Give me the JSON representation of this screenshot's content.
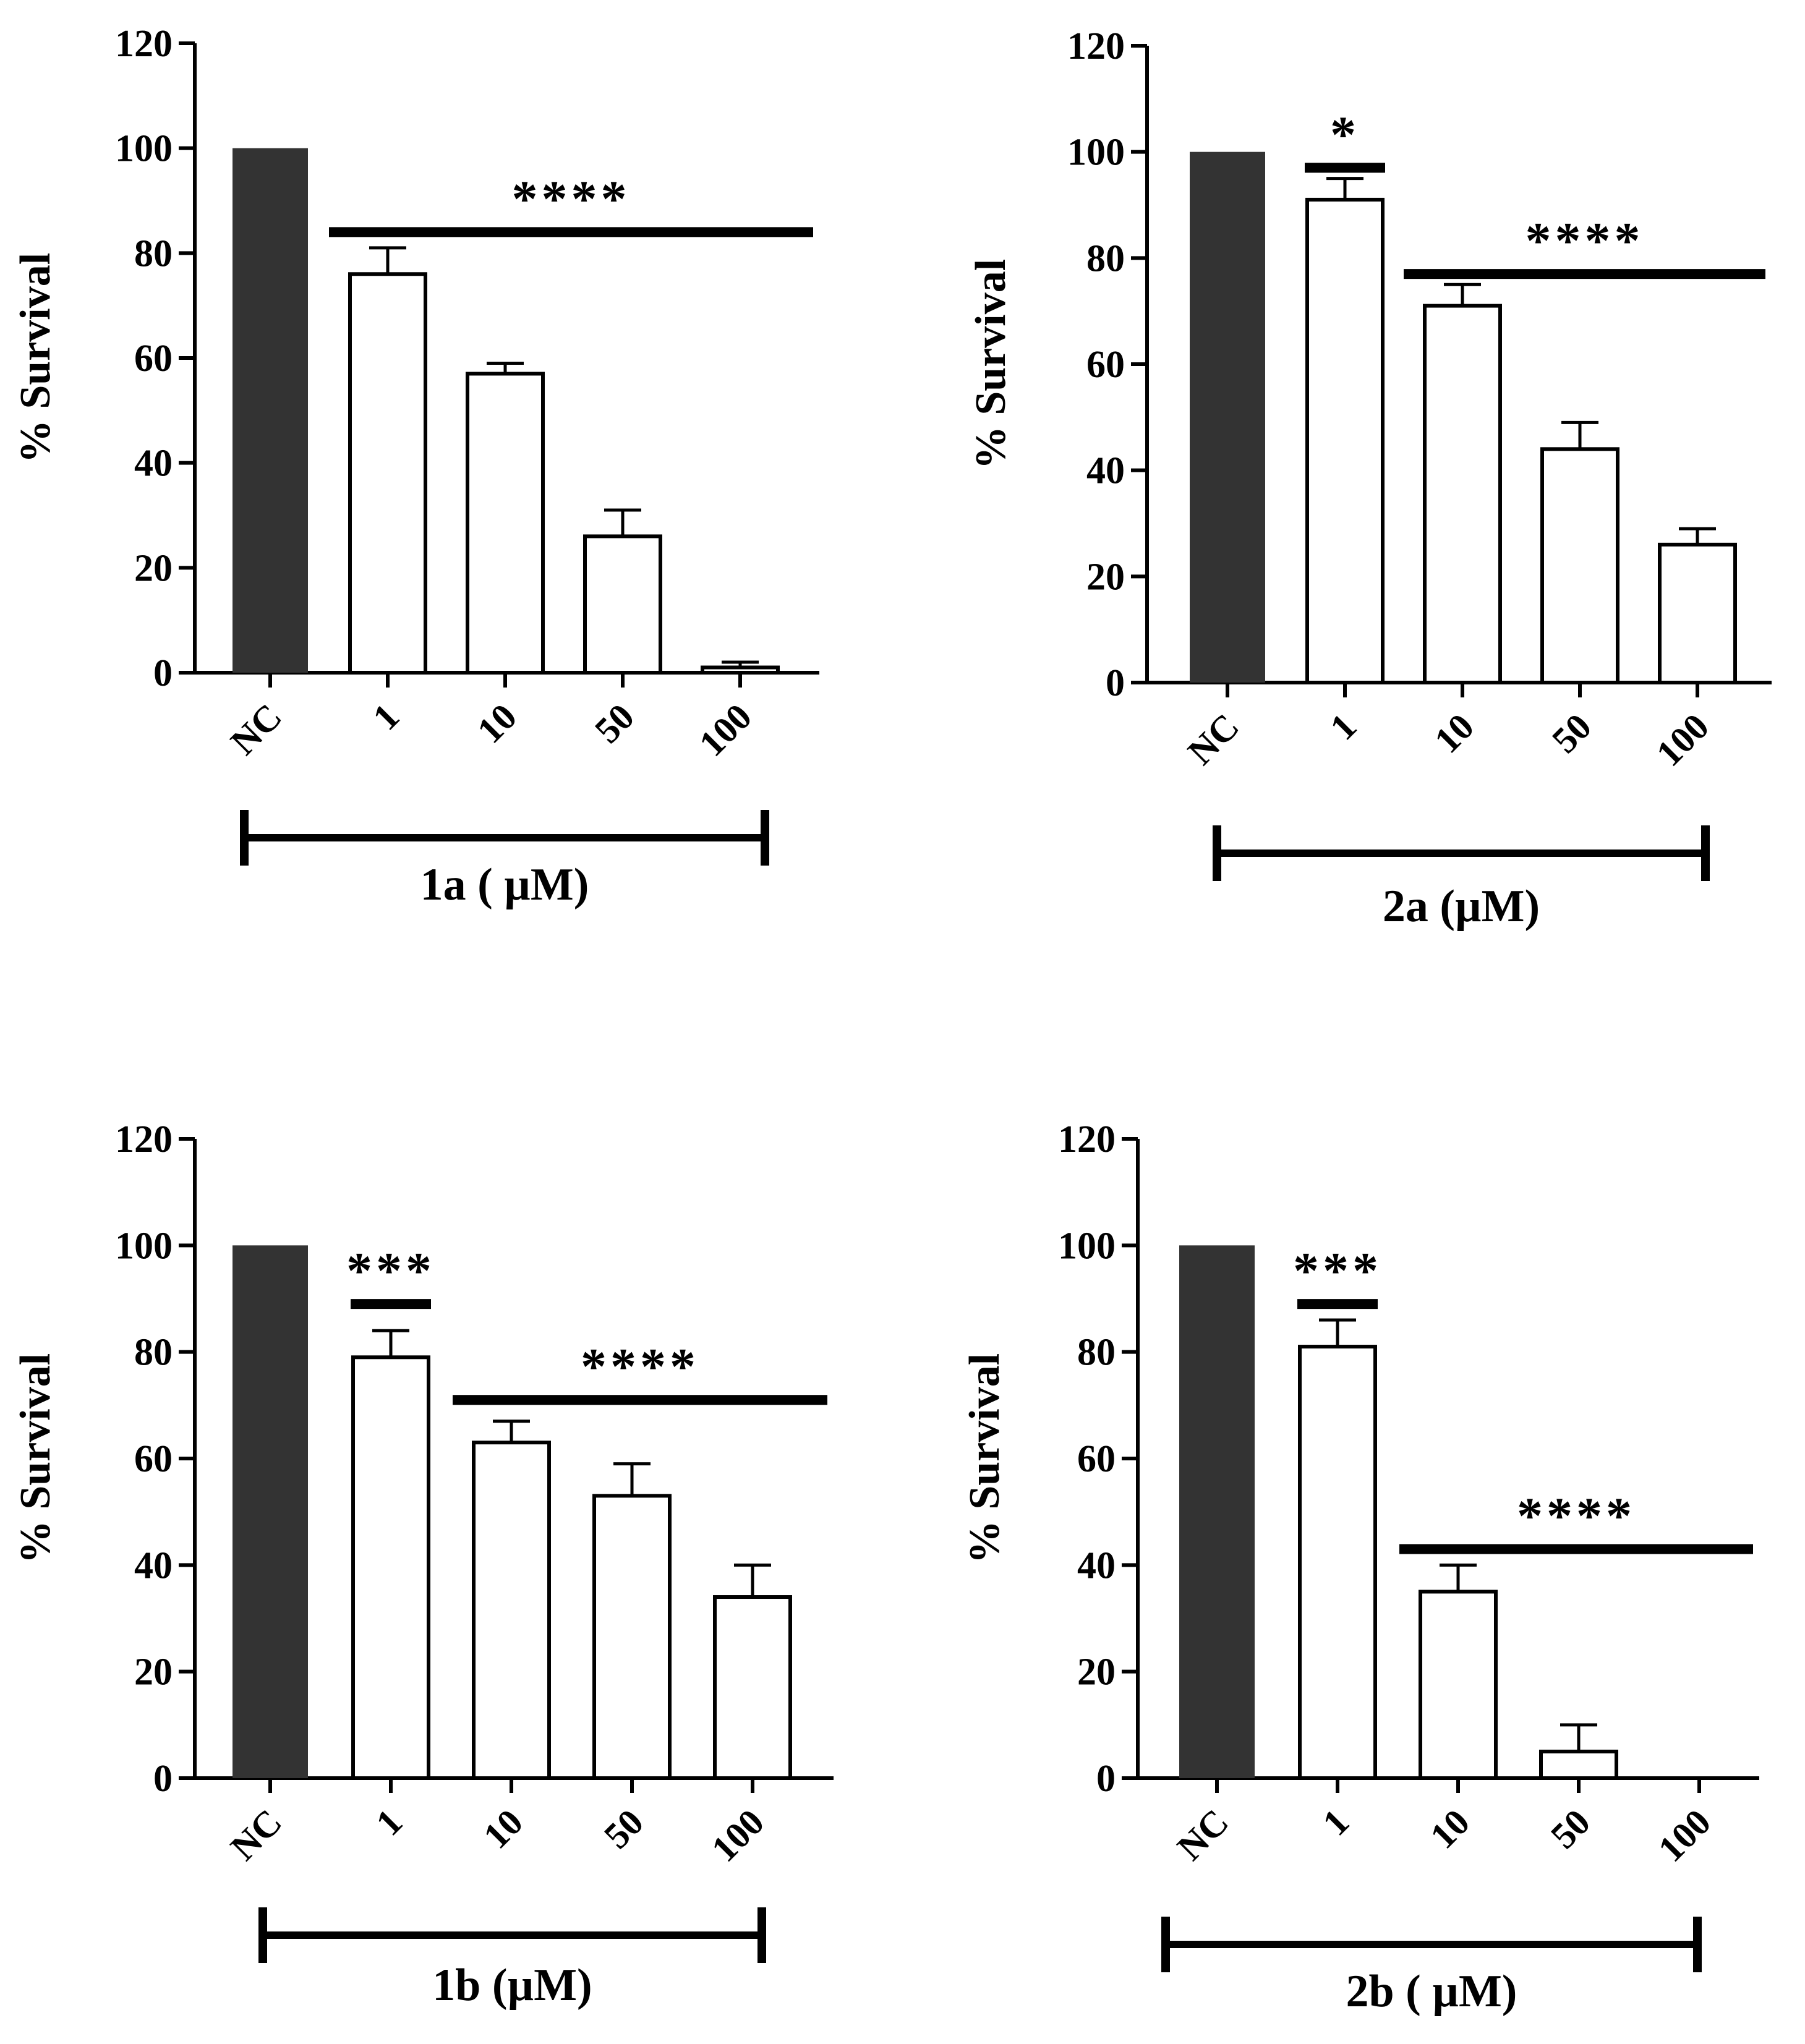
{
  "colors": {
    "control_fill": "#333333",
    "bar_fill": "#ffffff",
    "stroke": "#000000",
    "text": "#000000"
  },
  "chart_data": [
    {
      "type": "bar",
      "panel": "1a",
      "categories": [
        "NC",
        "1",
        "10",
        "50",
        "100"
      ],
      "values": [
        100,
        76,
        57,
        26,
        1
      ],
      "errors": [
        0,
        5,
        2,
        5,
        1
      ],
      "ylabel": "% Survival",
      "ylim": [
        0,
        120
      ],
      "yticks": [
        "0",
        "20",
        "40",
        "60",
        "80",
        "100",
        "120"
      ],
      "group_label": "1a ( µM)",
      "significance": [
        {
          "label": "****",
          "from": "1",
          "to": "100",
          "level": 84
        }
      ]
    },
    {
      "type": "bar",
      "panel": "2a",
      "categories": [
        "NC",
        "1",
        "10",
        "50",
        "100"
      ],
      "values": [
        100,
        91,
        71,
        44,
        26
      ],
      "errors": [
        0,
        4,
        4,
        5,
        3
      ],
      "ylabel": "% Survival",
      "ylim": [
        0,
        120
      ],
      "yticks": [
        "0",
        "20",
        "40",
        "60",
        "80",
        "100",
        "120"
      ],
      "group_label": "2a (µM)",
      "significance": [
        {
          "label": "*",
          "from": "1",
          "to": "1",
          "level": 97
        },
        {
          "label": "****",
          "from": "10",
          "to": "100",
          "level": 77
        }
      ]
    },
    {
      "type": "bar",
      "panel": "1b",
      "categories": [
        "NC",
        "1",
        "10",
        "50",
        "100"
      ],
      "values": [
        100,
        79,
        63,
        53,
        34
      ],
      "errors": [
        0,
        5,
        4,
        6,
        6
      ],
      "ylabel": "% Survival",
      "ylim": [
        0,
        120
      ],
      "yticks": [
        "0",
        "20",
        "40",
        "60",
        "80",
        "100",
        "120"
      ],
      "group_label": "1b (µM)",
      "significance": [
        {
          "label": "***",
          "from": "1",
          "to": "1",
          "level": 89
        },
        {
          "label": "****",
          "from": "10",
          "to": "100",
          "level": 71
        }
      ]
    },
    {
      "type": "bar",
      "panel": "2b",
      "categories": [
        "NC",
        "1",
        "10",
        "50",
        "100"
      ],
      "values": [
        100,
        81,
        35,
        5,
        0
      ],
      "errors": [
        0,
        5,
        5,
        5,
        0
      ],
      "ylabel": "% Survival",
      "ylim": [
        0,
        120
      ],
      "yticks": [
        "0",
        "20",
        "40",
        "60",
        "80",
        "100",
        "120"
      ],
      "group_label": "2b ( µM)",
      "significance": [
        {
          "label": "***",
          "from": "1",
          "to": "1",
          "level": 89
        },
        {
          "label": "****",
          "from": "10",
          "to": "100",
          "level": 43
        }
      ]
    }
  ]
}
